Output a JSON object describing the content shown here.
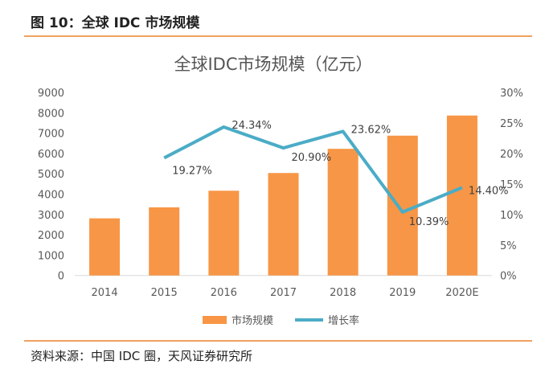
{
  "figure_title": "图 10：全球 IDC 市场规模",
  "source": "资料来源：中国 IDC 圈，天风证券研究所",
  "colors": {
    "bar": "#f79646",
    "line": "#4bacc6",
    "rule": "#f0a060"
  },
  "chart_data": {
    "type": "bar+line",
    "title": "全球IDC市场规模（亿元）",
    "categories": [
      "2014",
      "2015",
      "2016",
      "2017",
      "2018",
      "2019",
      "2020E"
    ],
    "series": [
      {
        "name": "市场规模",
        "type": "bar",
        "axis": "left",
        "values": [
          2810,
          3351,
          4167,
          5038,
          6228,
          6875,
          7865
        ]
      },
      {
        "name": "增长率",
        "type": "line",
        "axis": "right",
        "values": [
          null,
          19.27,
          24.34,
          20.9,
          23.62,
          10.39,
          14.4
        ],
        "labels": [
          "",
          "19.27%",
          "24.34%",
          "20.90%",
          "23.62%",
          "10.39%",
          "14.40%"
        ]
      }
    ],
    "left_axis": {
      "ylim": [
        0,
        9000
      ],
      "ticks": [
        "0",
        "1000",
        "2000",
        "3000",
        "4000",
        "5000",
        "6000",
        "7000",
        "8000",
        "9000"
      ]
    },
    "right_axis": {
      "ylim": [
        0,
        30
      ],
      "ticks": [
        "0%",
        "5%",
        "10%",
        "15%",
        "20%",
        "25%",
        "30%"
      ]
    },
    "legend": "bottom",
    "grid": false
  }
}
